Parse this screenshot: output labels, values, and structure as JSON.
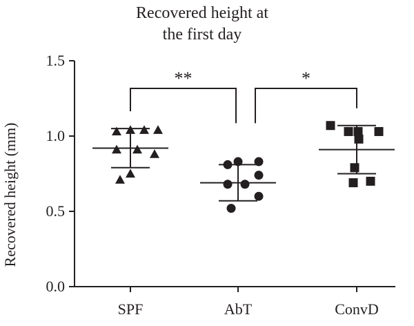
{
  "chart_data": {
    "type": "scatter",
    "title": [
      "Recovered height at",
      "the first day"
    ],
    "ylabel": "Recovered height (mm)",
    "xlabel": "",
    "ylim": [
      0,
      1.5
    ],
    "yticks": [
      "0.0",
      "0.5",
      "1.0",
      "1.5"
    ],
    "categories": [
      "SPF",
      "AbT",
      "ConvD"
    ],
    "grid": false,
    "groups": [
      {
        "category": "SPF",
        "marker": "triangle",
        "mean": 0.92,
        "sd_upper": 1.05,
        "sd_lower": 0.79,
        "points": [
          1.03,
          1.04,
          1.04,
          1.04,
          0.91,
          0.91,
          0.88,
          0.75,
          0.71
        ]
      },
      {
        "category": "AbT",
        "marker": "circle",
        "mean": 0.69,
        "sd_upper": 0.81,
        "sd_lower": 0.57,
        "points": [
          0.83,
          0.83,
          0.81,
          0.74,
          0.68,
          0.68,
          0.6,
          0.52
        ]
      },
      {
        "category": "ConvD",
        "marker": "square",
        "mean": 0.91,
        "sd_upper": 1.07,
        "sd_lower": 0.75,
        "points": [
          1.07,
          1.03,
          1.03,
          1.03,
          0.98,
          0.79,
          0.7,
          0.69
        ]
      }
    ],
    "significance": [
      {
        "from": "SPF",
        "to": "AbT",
        "label": "**"
      },
      {
        "from": "AbT",
        "to": "ConvD",
        "label": "*"
      }
    ]
  }
}
